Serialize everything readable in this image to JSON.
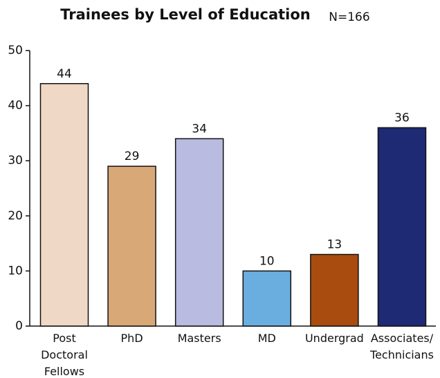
{
  "chart_data": {
    "type": "bar",
    "title": "Trainees by Level of Education",
    "subtitle": "N=166",
    "categories": [
      "Post Doctoral Fellows",
      "PhD",
      "Masters",
      "MD",
      "Undergrad",
      "Associates/ Technicians"
    ],
    "values": [
      44,
      29,
      34,
      10,
      13,
      36
    ],
    "colors": [
      "#f0d8c6",
      "#d9a877",
      "#babbe0",
      "#6aaee0",
      "#a84c10",
      "#1f2a75"
    ],
    "ylim": [
      0,
      50
    ],
    "yticks": [
      0,
      10,
      20,
      30,
      40,
      50
    ],
    "grid": false
  }
}
